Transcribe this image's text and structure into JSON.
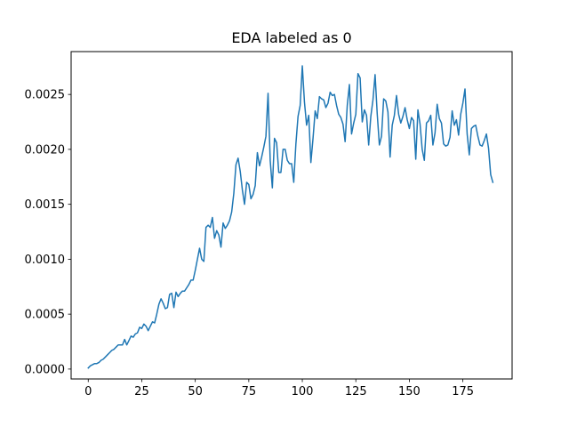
{
  "chart_data": {
    "type": "line",
    "title": "EDA labeled as 0",
    "xlabel": "",
    "ylabel": "",
    "xlim": [
      -8,
      198
    ],
    "ylim": [
      -9e-05,
      0.00289
    ],
    "xticks": [
      0,
      25,
      50,
      75,
      100,
      125,
      150,
      175
    ],
    "xtick_labels": [
      "0",
      "25",
      "50",
      "75",
      "100",
      "125",
      "150",
      "175"
    ],
    "yticks": [
      0.0,
      0.0005,
      0.001,
      0.0015,
      0.002,
      0.0025
    ],
    "ytick_labels": [
      "0.0000",
      "0.0005",
      "0.0010",
      "0.0015",
      "0.0020",
      "0.0025"
    ],
    "grid": false,
    "series": [
      {
        "color": "#1f77b4",
        "x": [
          0,
          1,
          2,
          3,
          4,
          5,
          6,
          7,
          8,
          9,
          10,
          11,
          12,
          13,
          14,
          15,
          16,
          17,
          18,
          19,
          20,
          21,
          22,
          23,
          24,
          25,
          26,
          27,
          28,
          29,
          30,
          31,
          32,
          33,
          34,
          35,
          36,
          37,
          38,
          39,
          40,
          41,
          42,
          43,
          44,
          45,
          46,
          47,
          48,
          49,
          50,
          51,
          52,
          53,
          54,
          55,
          56,
          57,
          58,
          59,
          60,
          61,
          62,
          63,
          64,
          65,
          66,
          67,
          68,
          69,
          70,
          71,
          72,
          73,
          74,
          75,
          76,
          77,
          78,
          79,
          80,
          81,
          82,
          83,
          84,
          85,
          86,
          87,
          88,
          89,
          90,
          91,
          92,
          93,
          94,
          95,
          96,
          97,
          98,
          99,
          100,
          101,
          102,
          103,
          104,
          105,
          106,
          107,
          108,
          109,
          110,
          111,
          112,
          113,
          114,
          115,
          116,
          117,
          118,
          119,
          120,
          121,
          122,
          123,
          124,
          125,
          126,
          127,
          128,
          129,
          130,
          131,
          132,
          133,
          134,
          135,
          136,
          137,
          138,
          139,
          140,
          141,
          142,
          143,
          144,
          145,
          146,
          147,
          148,
          149,
          150,
          151,
          152,
          153,
          154,
          155,
          156,
          157,
          158,
          159,
          160,
          161,
          162,
          163,
          164,
          165,
          166,
          167,
          168,
          169,
          170,
          171,
          172,
          173,
          174,
          175,
          176,
          177,
          178,
          179,
          180,
          181,
          182,
          183,
          184,
          185,
          186,
          187,
          188,
          189
        ],
        "y": [
          1e-05,
          3e-05,
          4e-05,
          5e-05,
          5e-05,
          6e-05,
          8e-05,
          9e-05,
          0.00011,
          0.00013,
          0.00015,
          0.00017,
          0.00018,
          0.0002,
          0.00022,
          0.00022,
          0.00022,
          0.00027,
          0.00022,
          0.00026,
          0.0003,
          0.00029,
          0.00032,
          0.00033,
          0.00038,
          0.00037,
          0.00041,
          0.00039,
          0.00035,
          0.00039,
          0.00043,
          0.00042,
          0.0005,
          0.00059,
          0.00064,
          0.0006,
          0.00055,
          0.00056,
          0.00068,
          0.00069,
          0.00056,
          0.0007,
          0.00066,
          0.00069,
          0.00071,
          0.00071,
          0.00074,
          0.00077,
          0.00081,
          0.00081,
          0.0009,
          0.001,
          0.0011,
          0.001,
          0.00098,
          0.00129,
          0.00131,
          0.00129,
          0.00138,
          0.00119,
          0.00126,
          0.00122,
          0.00111,
          0.00133,
          0.00128,
          0.00131,
          0.00135,
          0.00143,
          0.0016,
          0.00186,
          0.00192,
          0.0018,
          0.00163,
          0.0015,
          0.0017,
          0.00168,
          0.00155,
          0.00159,
          0.00167,
          0.00197,
          0.00185,
          0.00193,
          0.00202,
          0.00212,
          0.00251,
          0.0019,
          0.00165,
          0.0021,
          0.00206,
          0.00179,
          0.00179,
          0.002,
          0.002,
          0.0019,
          0.00187,
          0.00187,
          0.0017,
          0.00205,
          0.0023,
          0.0024,
          0.00276,
          0.00243,
          0.00222,
          0.00231,
          0.00188,
          0.0021,
          0.00235,
          0.00228,
          0.00248,
          0.00246,
          0.00245,
          0.00238,
          0.00242,
          0.00252,
          0.00249,
          0.0025,
          0.0024,
          0.00232,
          0.00229,
          0.00223,
          0.00207,
          0.0024,
          0.00259,
          0.00214,
          0.00224,
          0.00232,
          0.00269,
          0.00265,
          0.00225,
          0.00236,
          0.00231,
          0.00204,
          0.0023,
          0.00245,
          0.00268,
          0.00232,
          0.00204,
          0.00212,
          0.00246,
          0.00244,
          0.00234,
          0.00193,
          0.00222,
          0.00231,
          0.00249,
          0.00232,
          0.00224,
          0.0023,
          0.00238,
          0.00227,
          0.00219,
          0.00229,
          0.00226,
          0.00191,
          0.00236,
          0.00223,
          0.002,
          0.0019,
          0.00224,
          0.00226,
          0.00231,
          0.00204,
          0.00215,
          0.00241,
          0.00228,
          0.00224,
          0.00205,
          0.00203,
          0.00204,
          0.00211,
          0.00235,
          0.00222,
          0.00227,
          0.00213,
          0.00232,
          0.00242,
          0.00255,
          0.00214,
          0.00195,
          0.00219,
          0.00221,
          0.00222,
          0.00212,
          0.00204,
          0.00203,
          0.00208,
          0.00214,
          0.00201,
          0.00177,
          0.0017
        ]
      }
    ]
  }
}
